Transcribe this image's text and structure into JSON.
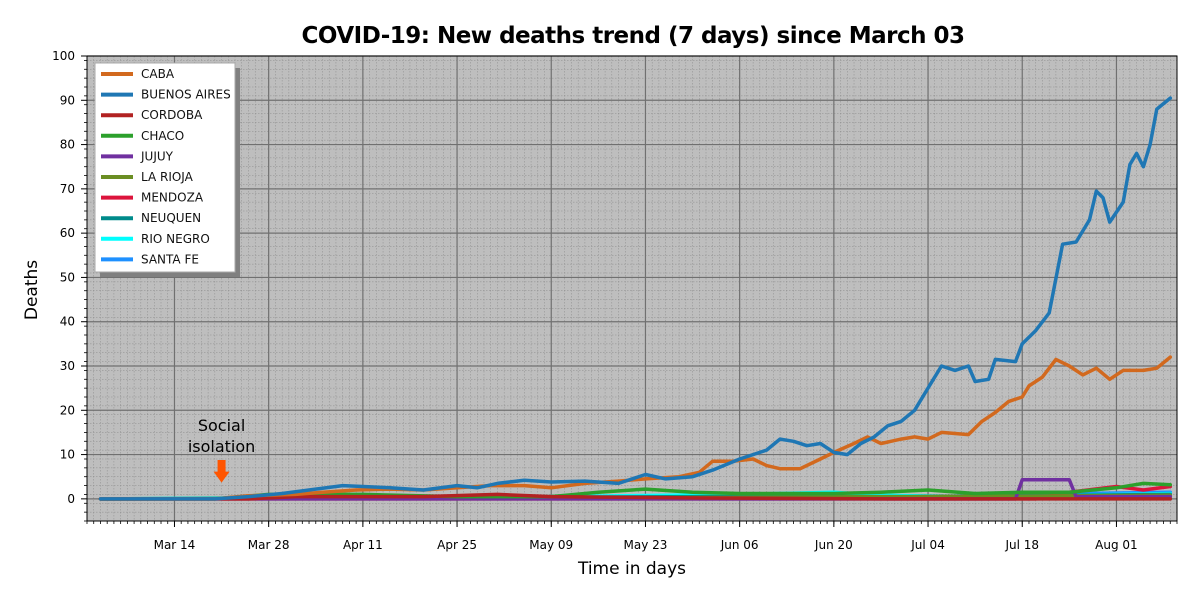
{
  "chart_data": {
    "type": "line",
    "title": "COVID-19: New deaths trend (7 days) since March 03",
    "xlabel": "Time in days",
    "ylabel": "Deaths",
    "ylim": [
      -5,
      100
    ],
    "yticks": [
      0,
      10,
      20,
      30,
      40,
      50,
      60,
      70,
      80,
      90,
      100
    ],
    "xlim": [
      "2020-03-01",
      "2020-08-10"
    ],
    "xticks": [
      {
        "date": "2020-03-14",
        "label": "Mar 14"
      },
      {
        "date": "2020-03-28",
        "label": "Mar 28"
      },
      {
        "date": "2020-04-11",
        "label": "Apr 11"
      },
      {
        "date": "2020-04-25",
        "label": "Apr 25"
      },
      {
        "date": "2020-05-09",
        "label": "May 09"
      },
      {
        "date": "2020-05-23",
        "label": "May 23"
      },
      {
        "date": "2020-06-06",
        "label": "Jun 06"
      },
      {
        "date": "2020-06-20",
        "label": "Jun 20"
      },
      {
        "date": "2020-07-04",
        "label": "Jul 04"
      },
      {
        "date": "2020-07-18",
        "label": "Jul 18"
      },
      {
        "date": "2020-08-01",
        "label": "Aug 01"
      }
    ],
    "grid": true,
    "legend_position": "top-left",
    "background": "#bebebe",
    "annotation": {
      "lines": [
        "Social",
        "isolation"
      ],
      "date": "2020-03-21",
      "value": 3,
      "color": "#ff5500"
    },
    "series": [
      {
        "name": "CABA",
        "color": "#d2691e",
        "points": [
          [
            "2020-03-03",
            0
          ],
          [
            "2020-03-20",
            0
          ],
          [
            "2020-03-25",
            0.7
          ],
          [
            "2020-04-01",
            1
          ],
          [
            "2020-04-05",
            1.5
          ],
          [
            "2020-04-10",
            2
          ],
          [
            "2020-04-15",
            2.2
          ],
          [
            "2020-04-20",
            2
          ],
          [
            "2020-04-25",
            2.5
          ],
          [
            "2020-04-30",
            3
          ],
          [
            "2020-05-05",
            3
          ],
          [
            "2020-05-09",
            2.5
          ],
          [
            "2020-05-14",
            3.5
          ],
          [
            "2020-05-19",
            4
          ],
          [
            "2020-05-23",
            4.5
          ],
          [
            "2020-05-28",
            5
          ],
          [
            "2020-05-31",
            6
          ],
          [
            "2020-06-02",
            8.5
          ],
          [
            "2020-06-05",
            8.5
          ],
          [
            "2020-06-08",
            9
          ],
          [
            "2020-06-10",
            7.5
          ],
          [
            "2020-06-12",
            6.8
          ],
          [
            "2020-06-15",
            6.8
          ],
          [
            "2020-06-18",
            9
          ],
          [
            "2020-06-20",
            10.5
          ],
          [
            "2020-06-23",
            12.5
          ],
          [
            "2020-06-25",
            14
          ],
          [
            "2020-06-27",
            12.5
          ],
          [
            "2020-06-30",
            13.5
          ],
          [
            "2020-07-02",
            14
          ],
          [
            "2020-07-04",
            13.5
          ],
          [
            "2020-07-06",
            15
          ],
          [
            "2020-07-10",
            14.5
          ],
          [
            "2020-07-12",
            17.5
          ],
          [
            "2020-07-14",
            19.5
          ],
          [
            "2020-07-16",
            22
          ],
          [
            "2020-07-18",
            23
          ],
          [
            "2020-07-19",
            25.5
          ],
          [
            "2020-07-21",
            27.5
          ],
          [
            "2020-07-23",
            31.5
          ],
          [
            "2020-07-25",
            30
          ],
          [
            "2020-07-27",
            28
          ],
          [
            "2020-07-29",
            29.5
          ],
          [
            "2020-07-31",
            27
          ],
          [
            "2020-08-02",
            29
          ],
          [
            "2020-08-05",
            29
          ],
          [
            "2020-08-07",
            29.5
          ],
          [
            "2020-08-09",
            32
          ]
        ]
      },
      {
        "name": "BUENOS AIRES",
        "color": "#1f77b4",
        "points": [
          [
            "2020-03-03",
            0
          ],
          [
            "2020-03-20",
            0
          ],
          [
            "2020-03-25",
            0.5
          ],
          [
            "2020-03-30",
            1.2
          ],
          [
            "2020-04-03",
            2
          ],
          [
            "2020-04-08",
            3
          ],
          [
            "2020-04-11",
            2.8
          ],
          [
            "2020-04-15",
            2.5
          ],
          [
            "2020-04-20",
            2
          ],
          [
            "2020-04-25",
            3
          ],
          [
            "2020-04-28",
            2.5
          ],
          [
            "2020-05-01",
            3.5
          ],
          [
            "2020-05-05",
            4.2
          ],
          [
            "2020-05-09",
            3.8
          ],
          [
            "2020-05-14",
            4
          ],
          [
            "2020-05-19",
            3.5
          ],
          [
            "2020-05-23",
            5.5
          ],
          [
            "2020-05-26",
            4.5
          ],
          [
            "2020-05-30",
            5
          ],
          [
            "2020-06-02",
            6.5
          ],
          [
            "2020-06-06",
            9
          ],
          [
            "2020-06-10",
            11
          ],
          [
            "2020-06-12",
            13.5
          ],
          [
            "2020-06-14",
            13
          ],
          [
            "2020-06-16",
            12
          ],
          [
            "2020-06-18",
            12.5
          ],
          [
            "2020-06-20",
            10.5
          ],
          [
            "2020-06-22",
            10
          ],
          [
            "2020-06-24",
            12.5
          ],
          [
            "2020-06-26",
            14
          ],
          [
            "2020-06-28",
            16.5
          ],
          [
            "2020-06-30",
            17.5
          ],
          [
            "2020-07-02",
            20
          ],
          [
            "2020-07-04",
            25
          ],
          [
            "2020-07-06",
            30
          ],
          [
            "2020-07-08",
            29
          ],
          [
            "2020-07-10",
            30
          ],
          [
            "2020-07-11",
            26.5
          ],
          [
            "2020-07-13",
            27
          ],
          [
            "2020-07-14",
            31.5
          ],
          [
            "2020-07-17",
            31
          ],
          [
            "2020-07-18",
            35
          ],
          [
            "2020-07-20",
            38
          ],
          [
            "2020-07-22",
            42
          ],
          [
            "2020-07-24",
            57.5
          ],
          [
            "2020-07-26",
            58
          ],
          [
            "2020-07-28",
            63
          ],
          [
            "2020-07-29",
            69.5
          ],
          [
            "2020-07-30",
            68
          ],
          [
            "2020-07-31",
            62.5
          ],
          [
            "2020-08-02",
            67
          ],
          [
            "2020-08-03",
            75.5
          ],
          [
            "2020-08-04",
            78
          ],
          [
            "2020-08-05",
            75
          ],
          [
            "2020-08-06",
            80
          ],
          [
            "2020-08-07",
            88
          ],
          [
            "2020-08-09",
            90.5
          ]
        ]
      },
      {
        "name": "CORDOBA",
        "color": "#b22222",
        "points": [
          [
            "2020-03-03",
            0
          ],
          [
            "2020-03-25",
            0
          ],
          [
            "2020-04-01",
            0.5
          ],
          [
            "2020-04-20",
            0.5
          ],
          [
            "2020-05-01",
            1
          ],
          [
            "2020-05-09",
            0.5
          ],
          [
            "2020-06-01",
            0.2
          ],
          [
            "2020-07-01",
            0
          ],
          [
            "2020-08-09",
            0
          ]
        ]
      },
      {
        "name": "CHACO",
        "color": "#2ca02c",
        "points": [
          [
            "2020-03-03",
            0
          ],
          [
            "2020-03-20",
            0
          ],
          [
            "2020-03-28",
            1
          ],
          [
            "2020-04-11",
            1
          ],
          [
            "2020-04-25",
            0.5
          ],
          [
            "2020-05-09",
            0.5
          ],
          [
            "2020-05-16",
            1.5
          ],
          [
            "2020-05-23",
            2.2
          ],
          [
            "2020-05-30",
            1.5
          ],
          [
            "2020-06-06",
            1.2
          ],
          [
            "2020-06-20",
            1.2
          ],
          [
            "2020-06-27",
            1.5
          ],
          [
            "2020-07-04",
            2
          ],
          [
            "2020-07-11",
            1.2
          ],
          [
            "2020-07-18",
            1.5
          ],
          [
            "2020-07-25",
            1.5
          ],
          [
            "2020-08-01",
            2.5
          ],
          [
            "2020-08-05",
            3.5
          ],
          [
            "2020-08-09",
            3.2
          ]
        ]
      },
      {
        "name": "JUJUY",
        "color": "#7030a0",
        "points": [
          [
            "2020-03-03",
            0
          ],
          [
            "2020-07-17",
            0
          ],
          [
            "2020-07-18",
            4.3
          ],
          [
            "2020-07-25",
            4.3
          ],
          [
            "2020-07-26",
            0.5
          ],
          [
            "2020-08-09",
            0.5
          ]
        ]
      },
      {
        "name": "LA RIOJA",
        "color": "#6b8e23",
        "points": [
          [
            "2020-03-03",
            0
          ],
          [
            "2020-06-01",
            0.3
          ],
          [
            "2020-07-01",
            0.5
          ],
          [
            "2020-08-09",
            0.8
          ]
        ]
      },
      {
        "name": "MENDOZA",
        "color": "#dc143c",
        "points": [
          [
            "2020-03-03",
            0
          ],
          [
            "2020-07-20",
            0
          ],
          [
            "2020-07-25",
            1.5
          ],
          [
            "2020-08-01",
            2.8
          ],
          [
            "2020-08-05",
            2
          ],
          [
            "2020-08-09",
            2.8
          ]
        ]
      },
      {
        "name": "NEUQUEN",
        "color": "#008b8b",
        "points": [
          [
            "2020-03-03",
            0
          ],
          [
            "2020-05-01",
            0.3
          ],
          [
            "2020-06-01",
            0.5
          ],
          [
            "2020-07-01",
            0.5
          ],
          [
            "2020-08-09",
            1
          ]
        ]
      },
      {
        "name": "RIO NEGRO",
        "color": "#00ffff",
        "points": [
          [
            "2020-03-03",
            0
          ],
          [
            "2020-04-01",
            0.3
          ],
          [
            "2020-05-09",
            0.5
          ],
          [
            "2020-06-06",
            1
          ],
          [
            "2020-06-20",
            1.5
          ],
          [
            "2020-06-27",
            0.8
          ],
          [
            "2020-07-10",
            0.5
          ],
          [
            "2020-07-18",
            1.5
          ],
          [
            "2020-07-25",
            0.8
          ],
          [
            "2020-08-09",
            1.2
          ]
        ]
      },
      {
        "name": "SANTA FE",
        "color": "#1e90ff",
        "points": [
          [
            "2020-03-03",
            0
          ],
          [
            "2020-05-01",
            0.2
          ],
          [
            "2020-06-01",
            0.3
          ],
          [
            "2020-07-01",
            0.3
          ],
          [
            "2020-07-18",
            1
          ],
          [
            "2020-08-09",
            1.5
          ]
        ]
      }
    ]
  }
}
